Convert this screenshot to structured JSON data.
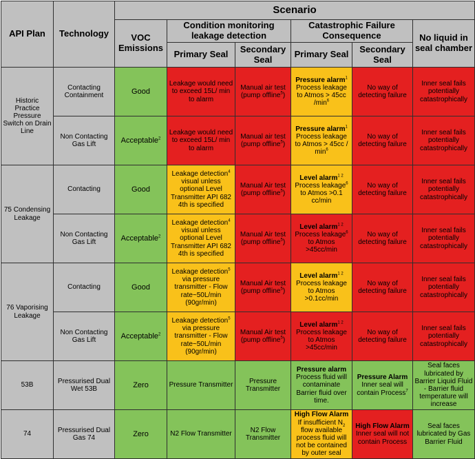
{
  "header": {
    "api_plan": "API Plan",
    "technology": "Technology",
    "scenario": "Scenario",
    "voc_emissions": "VOC Emissions",
    "condition_monitoring": "Condition monitoring leakage detection",
    "catastrophic_failure": "Catastrophic Failure Consequence",
    "primary_seal": "Primary Seal",
    "secondary_seal": "Secondary Seal",
    "no_liquid": "No liquid in seal chamber"
  },
  "groups": [
    {
      "plan": "Historic Practice Pressure Switch on Drain Line",
      "rows": [
        {
          "technology": "Contacting Containment",
          "voc": "Good",
          "cm_primary": "Leakage would need to exceed 15L/ min to alarm",
          "cm_secondary_pre": "Manual air test (pump offline",
          "cm_secondary_sup": "5",
          "cm_secondary_post": ")",
          "cat_primary_bold": "Pressure alarm",
          "cat_primary_bold_sup": "1",
          "cat_primary_text": "Process leakage to Atmos > 45cc /min",
          "cat_primary_text_sup": "6",
          "cat_secondary": "No way of detecting failure",
          "no_liquid": "Inner seal fails potentially catastrophically"
        },
        {
          "technology": "Non Contacting Gas Lift",
          "voc": "Acceptable",
          "voc_sup": "2",
          "cm_primary": "Leakage would need to exceed 15L/ min to alarm",
          "cm_secondary_pre": "Manual air test (pump offline",
          "cm_secondary_sup": "5",
          "cm_secondary_post": ")",
          "cat_primary_bold": "Pressure alarm",
          "cat_primary_bold_sup": "1",
          "cat_primary_text": "Process leakage to Atmos > 45cc / min",
          "cat_primary_text_sup": "6",
          "cat_secondary": "No way of detecting failure",
          "no_liquid": "Inner seal fails potentially catastrophically"
        }
      ]
    },
    {
      "plan": "75 Condensing Leakage",
      "rows": [
        {
          "technology": "Contacting",
          "voc": "Good",
          "cm_primary_pre": "Leakage detection",
          "cm_primary_sup": "4",
          "cm_primary_post": "visual unless optional Level Transmitter API 682 4th is specified",
          "cm_secondary_pre": "Manual Air test (pump offline",
          "cm_secondary_sup": "5",
          "cm_secondary_post": ")",
          "cat_primary_bold": "Level alarm",
          "cat_primary_bold_sup": "1 2",
          "cat_primary_text_pre": "Process leakage",
          "cat_primary_text_sup": "6",
          "cat_primary_text": "to Atmos >0.1 cc/min",
          "cat_secondary": "No way of detecting failure",
          "no_liquid": "Inner seal fails potentially catastrophically"
        },
        {
          "technology": "Non Contacting Gas Lift",
          "voc": "Acceptable",
          "voc_sup": "2",
          "cm_primary_pre": "Leakage detection",
          "cm_primary_sup": "4",
          "cm_primary_post": "visual unless optional Level Transmitter API 682 4th is specified",
          "cm_secondary_pre": "Manual Air test (pump offline",
          "cm_secondary_sup": "5",
          "cm_secondary_post": ")",
          "cat_primary_bold": "Level alarm",
          "cat_primary_bold_sup": "1 2",
          "cat_primary_text_pre": "Process leakage",
          "cat_primary_text_sup": "6",
          "cat_primary_text": "to Atmos >45cc/min",
          "cat_secondary": "No way of detecting failure",
          "no_liquid": "Inner seal fails potentially catastrophically"
        }
      ]
    },
    {
      "plan": "76 Vaporising Leakage",
      "rows": [
        {
          "technology": "Contacting",
          "voc": "Good",
          "cm_primary_pre": "Leakage detection",
          "cm_primary_sup": "5",
          "cm_primary_post": "via pressure transmitter - Flow rate~50L/min (90gr/min)",
          "cm_secondary_pre": "Manual Air test (pump offline",
          "cm_secondary_sup": "5",
          "cm_secondary_post": ")",
          "cat_primary_bold": "Level alarm",
          "cat_primary_bold_sup": "1 2",
          "cat_primary_text": "Process leakage to Atmos >0.1cc/min",
          "cat_secondary": "No way of detecting failure",
          "no_liquid": "Inner seal fails potentially catastrophically"
        },
        {
          "technology": "Non Contacting Gas Lift",
          "voc": "Acceptable",
          "voc_sup": "2",
          "cm_primary_pre": "Leakage detection",
          "cm_primary_sup": "5",
          "cm_primary_post": "via pressure transmitter - Flow rate~50L/min (90gr/min)",
          "cm_secondary_pre": "Manual Air test (pump offline",
          "cm_secondary_sup": "5",
          "cm_secondary_post": ")",
          "cat_primary_bold": "Level alarm",
          "cat_primary_bold_sup": "1 2",
          "cat_primary_text": "Process leakage to Atmos >45cc/min",
          "cat_secondary": "No way of detecting failure",
          "no_liquid": "Inner seal fails potentially catastrophically"
        }
      ]
    },
    {
      "plan": "53B",
      "rows": [
        {
          "technology": "Pressurised Dual Wet 53B",
          "voc": "Zero",
          "cm_primary": "Pressure Transmitter",
          "cm_secondary": "Pressure Transmitter",
          "cat_primary_bold": "Pressure alarm",
          "cat_primary_text": "Process fluid will contaminate Barrier fluid over time.",
          "cat_secondary_bold": "Pressure Alarm",
          "cat_secondary_text": "Inner seal will contain Process",
          "cat_secondary_sup": "7",
          "no_liquid": "Seal faces lubricated by Barrier Liquid Fluid - Barrier fluid temperature will increase"
        }
      ]
    },
    {
      "plan": "74",
      "rows": [
        {
          "technology": "Pressurised Dual Gas 74",
          "voc": "Zero",
          "cm_primary": "N2 Flow Transmitter",
          "cm_secondary": "N2 Flow Transmitter",
          "cat_primary_bold": "High Flow Alarm",
          "cat_primary_text_pre": "If insufficient N",
          "cat_primary_text_sub": "2",
          "cat_primary_text": "flow available process fluid will not be contained by outer seal",
          "cat_secondary_bold": "High Flow Alarm",
          "cat_secondary_text": "Inner seal will not contain Process",
          "no_liquid": "Seal faces lubricated by Gas Barrier Fluid"
        }
      ]
    }
  ],
  "colors": {
    "good": "#84c35a",
    "bad": "#e42020",
    "warning": "#f9c11a",
    "header": "#c0c0c0"
  }
}
